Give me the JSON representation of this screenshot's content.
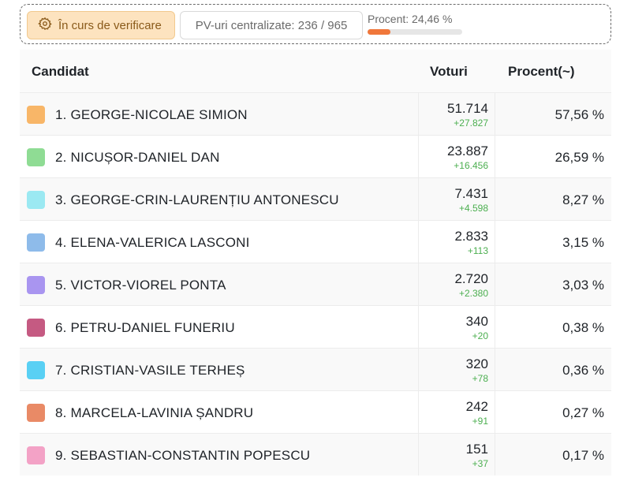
{
  "status": {
    "badge_label": "În curs de verificare",
    "pv_label": "PV-uri centralizate: 236 / 965",
    "progress_label": "Procent: 24,46 %",
    "progress_fraction": 0.2446,
    "progress_color": "#f0773b"
  },
  "table": {
    "headers": {
      "candidate": "Candidat",
      "votes": "Voturi",
      "percent": "Procent(~)"
    },
    "rows": [
      {
        "name": "1. GEORGE-NICOLAE SIMION",
        "votes": "51.714",
        "delta": "+27.827",
        "percent": "57,56 %",
        "color": "#f8b668"
      },
      {
        "name": "2. NICUȘOR-DANIEL DAN",
        "votes": "23.887",
        "delta": "+16.456",
        "percent": "26,59 %",
        "color": "#8fdc94"
      },
      {
        "name": "3. GEORGE-CRIN-LAURENȚIU ANTONESCU",
        "votes": "7.431",
        "delta": "+4.598",
        "percent": "8,27 %",
        "color": "#9be9f2"
      },
      {
        "name": "4. ELENA-VALERICA LASCONI",
        "votes": "2.833",
        "delta": "+113",
        "percent": "3,15 %",
        "color": "#8ebbea"
      },
      {
        "name": "5. VICTOR-VIOREL PONTA",
        "votes": "2.720",
        "delta": "+2.380",
        "percent": "3,03 %",
        "color": "#a995f0"
      },
      {
        "name": "6. PETRU-DANIEL FUNERIU",
        "votes": "340",
        "delta": "+20",
        "percent": "0,38 %",
        "color": "#c55a82"
      },
      {
        "name": "7. CRISTIAN-VASILE TERHEȘ",
        "votes": "320",
        "delta": "+78",
        "percent": "0,36 %",
        "color": "#59d0f4"
      },
      {
        "name": "8. MARCELA-LAVINIA ȘANDRU",
        "votes": "242",
        "delta": "+91",
        "percent": "0,27 %",
        "color": "#e98a66"
      },
      {
        "name": "9. SEBASTIAN-CONSTANTIN POPESCU",
        "votes": "151",
        "delta": "+37",
        "percent": "0,17 %",
        "color": "#f3a2c6"
      }
    ]
  }
}
